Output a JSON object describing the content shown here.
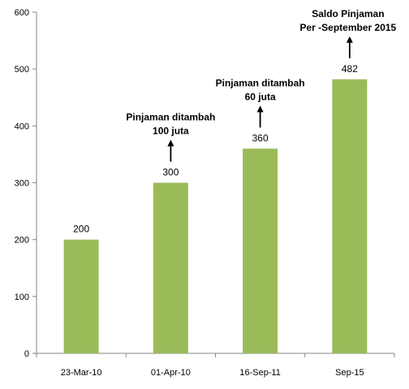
{
  "chart_data": {
    "type": "bar",
    "categories": [
      "23-Mar-10",
      "01-Apr-10",
      "16-Sep-11",
      "Sep-15"
    ],
    "values": [
      200,
      300,
      360,
      482
    ],
    "data_labels": [
      "200",
      "300",
      "360",
      "482"
    ],
    "ylim": [
      0,
      600
    ],
    "yticks": [
      0,
      100,
      200,
      300,
      400,
      500,
      600
    ],
    "ytick_labels": [
      "0",
      "100",
      "200",
      "300",
      "400",
      "500",
      "600"
    ],
    "grid": false,
    "legend": "none",
    "title": "",
    "xlabel": "",
    "ylabel": "",
    "bar_color": "#9BBB59",
    "annotations": [
      {
        "category_index": 1,
        "arrow": "up",
        "lines": [
          "Pinjaman ditambah",
          "100 juta"
        ]
      },
      {
        "category_index": 2,
        "arrow": "up",
        "lines": [
          "Pinjaman ditambah",
          "60 juta"
        ]
      },
      {
        "category_index": 3,
        "arrow": "up",
        "lines": [
          "Saldo Pinjaman",
          "Per -September 2015"
        ]
      }
    ]
  }
}
